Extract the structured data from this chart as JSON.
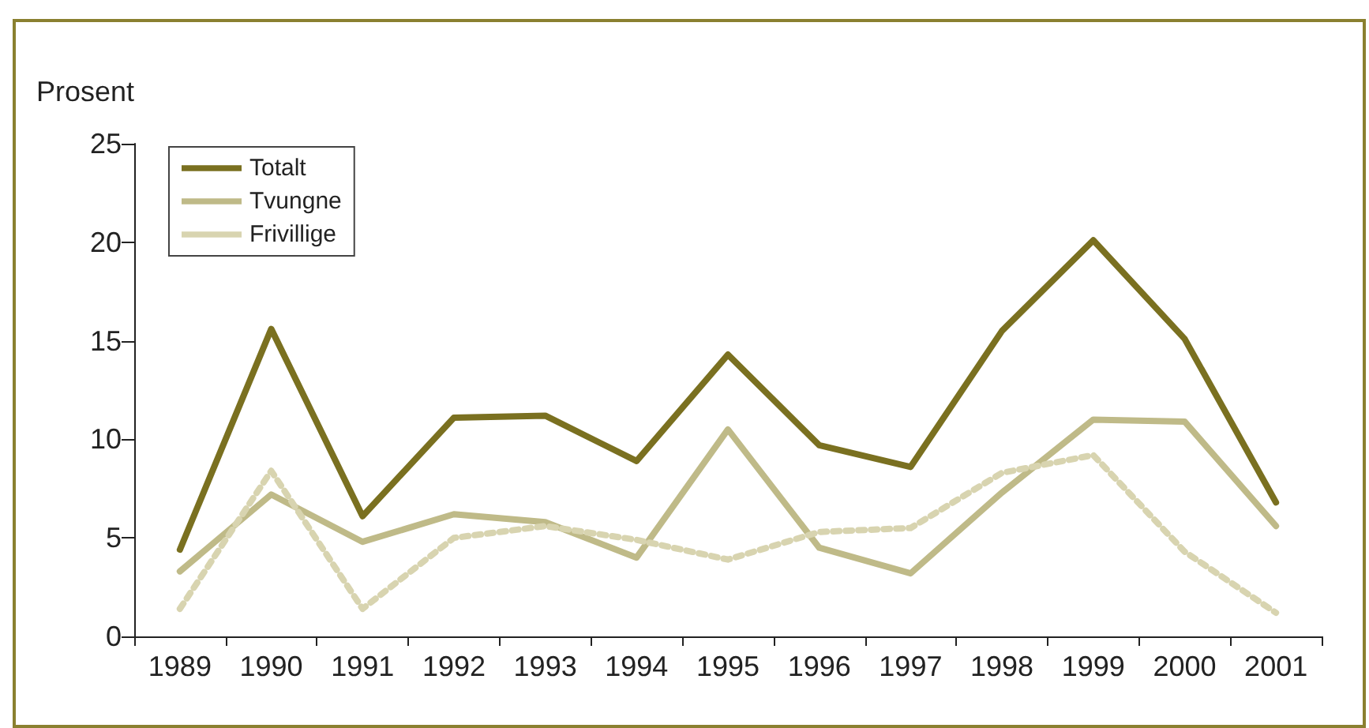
{
  "chart_data": {
    "type": "line",
    "ylabel": "Prosent",
    "categories": [
      "1989",
      "1990",
      "1991",
      "1992",
      "1993",
      "1994",
      "1995",
      "1996",
      "1997",
      "1998",
      "1999",
      "2000",
      "2001"
    ],
    "series": [
      {
        "name": "Totalt",
        "color": "#7a7020",
        "line_style": "solid",
        "values": [
          4.4,
          15.6,
          6.1,
          11.1,
          11.2,
          8.9,
          14.3,
          9.7,
          8.6,
          15.5,
          20.1,
          15.1,
          6.8
        ]
      },
      {
        "name": "Tvungne",
        "color": "#bfba88",
        "line_style": "solid",
        "values": [
          3.3,
          7.2,
          4.8,
          6.2,
          5.8,
          4.0,
          10.5,
          4.5,
          3.2,
          7.3,
          11.0,
          10.9,
          5.6
        ]
      },
      {
        "name": "Frivillige",
        "color": "#d8d4b0",
        "line_style": "dotted",
        "values": [
          1.4,
          8.4,
          1.4,
          5.0,
          5.6,
          4.9,
          3.9,
          5.3,
          5.5,
          8.3,
          9.2,
          4.3,
          1.2
        ]
      }
    ],
    "ylim": [
      0,
      25
    ],
    "yticks": [
      0,
      5,
      10,
      15,
      20,
      25
    ],
    "grid": false,
    "legend": "top left",
    "marker": "none"
  }
}
